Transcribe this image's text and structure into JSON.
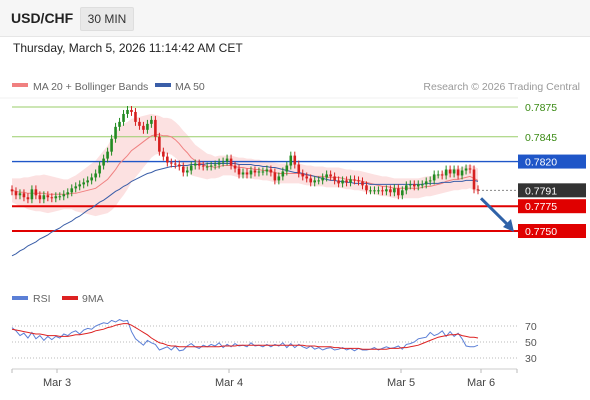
{
  "header": {
    "symbol": "USD/CHF",
    "timeframe": "30 MIN",
    "datetime": "Thursday, March 5, 2026 11:14:42 AM CET"
  },
  "legend": {
    "ma20": "MA 20 + Bollinger Bands",
    "ma50": "MA 50",
    "credit": "Research © 2026 Trading Central",
    "rsi": "RSI",
    "rsi_ma": "9MA"
  },
  "colors": {
    "up_candle": "#228b22",
    "down_candle": "#d62020",
    "ma20": "#f08080",
    "bollinger_fill": "#fcdcdc",
    "ma50": "#3a5ea8",
    "resistance_green": "#9acd6a",
    "pivot_blue": "#1f56c8",
    "support_red": "#e00000",
    "current_price_bg": "#333333",
    "rsi_line": "#5b7fd6",
    "rsi_ma_line": "#dd2222",
    "arrow": "#2f62a8"
  },
  "chart_data": {
    "type": "candlestick",
    "x_ticks": [
      "Mar 3",
      "Mar 4",
      "Mar 5",
      "Mar 6"
    ],
    "ylim": [
      0.771,
      0.789
    ],
    "levels": [
      {
        "value": 0.7875,
        "label": "0.7875",
        "kind": "resistance"
      },
      {
        "value": 0.7845,
        "label": "0.7845",
        "kind": "resistance"
      },
      {
        "value": 0.782,
        "label": "0.7820",
        "kind": "pivot"
      },
      {
        "value": 0.7791,
        "label": "0.7791",
        "kind": "current"
      },
      {
        "value": 0.7775,
        "label": "0.7775",
        "kind": "support"
      },
      {
        "value": 0.775,
        "label": "0.7750",
        "kind": "support"
      }
    ],
    "price_close": [
      0.779,
      0.7786,
      0.7788,
      0.7784,
      0.7782,
      0.7792,
      0.7786,
      0.7782,
      0.7786,
      0.7784,
      0.7783,
      0.7785,
      0.7785,
      0.7787,
      0.7789,
      0.7793,
      0.7795,
      0.7797,
      0.7799,
      0.7801,
      0.7804,
      0.7808,
      0.7816,
      0.7823,
      0.783,
      0.7843,
      0.7855,
      0.786,
      0.7868,
      0.7872,
      0.787,
      0.786,
      0.7856,
      0.7852,
      0.7858,
      0.7862,
      0.7845,
      0.783,
      0.7825,
      0.7819,
      0.7818,
      0.7817,
      0.7815,
      0.7809,
      0.7811,
      0.7816,
      0.7818,
      0.7816,
      0.7815,
      0.7815,
      0.7816,
      0.7817,
      0.7819,
      0.782,
      0.7823,
      0.7816,
      0.7813,
      0.7807,
      0.7809,
      0.7807,
      0.7811,
      0.7809,
      0.781,
      0.781,
      0.7812,
      0.7809,
      0.7801,
      0.7805,
      0.781,
      0.7816,
      0.7826,
      0.7817,
      0.7808,
      0.7805,
      0.7803,
      0.7799,
      0.7801,
      0.7801,
      0.7804,
      0.7807,
      0.7805,
      0.7801,
      0.7798,
      0.7801,
      0.7799,
      0.7802,
      0.7801,
      0.78,
      0.7796,
      0.7791,
      0.7791,
      0.7791,
      0.7791,
      0.779,
      0.7792,
      0.7789,
      0.7793,
      0.7786,
      0.7791,
      0.7796,
      0.7797,
      0.7795,
      0.7797,
      0.7797,
      0.78,
      0.7801,
      0.7807,
      0.7807,
      0.7806,
      0.7812,
      0.7808,
      0.7812,
      0.7806,
      0.7811,
      0.7813,
      0.7812,
      0.7792,
      0.7791
    ],
    "ma20": [
      0.7791,
      0.779,
      0.7789,
      0.7789,
      0.7788,
      0.7788,
      0.7788,
      0.7788,
      0.7788,
      0.7787,
      0.7787,
      0.7787,
      0.7787,
      0.7787,
      0.7787,
      0.7788,
      0.7788,
      0.7789,
      0.779,
      0.7791,
      0.7792,
      0.7793,
      0.7796,
      0.7799,
      0.7802,
      0.7807,
      0.7812,
      0.7818,
      0.7822,
      0.7826,
      0.7831,
      0.7834,
      0.7837,
      0.784,
      0.7843,
      0.7846,
      0.7847,
      0.7847,
      0.7846,
      0.7846,
      0.7845,
      0.7842,
      0.7838,
      0.7833,
      0.7829,
      0.7824,
      0.7821,
      0.7819,
      0.7817,
      0.7815,
      0.7815,
      0.7814,
      0.7815,
      0.7816,
      0.7816,
      0.7816,
      0.7815,
      0.7814,
      0.7814,
      0.7813,
      0.7813,
      0.7812,
      0.7812,
      0.7811,
      0.7811,
      0.781,
      0.7809,
      0.7808,
      0.7808,
      0.7808,
      0.7808,
      0.7808,
      0.7808,
      0.7807,
      0.7806,
      0.7806,
      0.7805,
      0.7805,
      0.7805,
      0.7804,
      0.7804,
      0.7804,
      0.7804,
      0.7803,
      0.7802,
      0.7802,
      0.7801,
      0.7801,
      0.78,
      0.7799,
      0.7798,
      0.7797,
      0.7796,
      0.7795,
      0.7795,
      0.7794,
      0.7793,
      0.7793,
      0.7793,
      0.7793,
      0.7793,
      0.7793,
      0.7793,
      0.7794,
      0.7795,
      0.7795,
      0.7796,
      0.7797,
      0.7798,
      0.78,
      0.7801,
      0.7802,
      0.7802,
      0.7803,
      0.7804,
      0.7805,
      0.7803,
      0.7801
    ],
    "ma50": [
      0.7725,
      0.7727,
      0.773,
      0.7732,
      0.7735,
      0.7737,
      0.7739,
      0.7742,
      0.7744,
      0.7746,
      0.7749,
      0.7751,
      0.7753,
      0.7756,
      0.7758,
      0.776,
      0.7763,
      0.7765,
      0.7768,
      0.7771,
      0.7773,
      0.7776,
      0.7779,
      0.7781,
      0.7784,
      0.7787,
      0.779,
      0.7792,
      0.7795,
      0.7797,
      0.78,
      0.7802,
      0.7804,
      0.7806,
      0.7808,
      0.7809,
      0.7811,
      0.7812,
      0.7813,
      0.7814,
      0.7815,
      0.7815,
      0.7816,
      0.7816,
      0.7816,
      0.7817,
      0.7817,
      0.7817,
      0.7817,
      0.7818,
      0.7818,
      0.7818,
      0.7818,
      0.7818,
      0.7818,
      0.7818,
      0.7818,
      0.7817,
      0.7817,
      0.7817,
      0.7817,
      0.7816,
      0.7816,
      0.7815,
      0.7815,
      0.7814,
      0.7814,
      0.7813,
      0.7812,
      0.7811,
      0.781,
      0.7809,
      0.7809,
      0.7808,
      0.7807,
      0.7806,
      0.7805,
      0.7804,
      0.7803,
      0.7802,
      0.7801,
      0.7801,
      0.78,
      0.78,
      0.7799,
      0.7799,
      0.7798,
      0.7798,
      0.7798,
      0.7798,
      0.7797,
      0.7797,
      0.7797,
      0.7797,
      0.7797,
      0.7797,
      0.7797,
      0.7797,
      0.7797,
      0.7797,
      0.7797,
      0.7797,
      0.7797,
      0.7797,
      0.7798,
      0.7798,
      0.7798,
      0.7798,
      0.7799,
      0.7799,
      0.7799,
      0.78,
      0.78,
      0.78,
      0.7801,
      0.7801,
      0.7801,
      0.78
    ],
    "bollinger_band_width": [
      0.0012,
      0.0013,
      0.0014,
      0.0015,
      0.0016,
      0.0017,
      0.0018,
      0.0018,
      0.0019,
      0.0019,
      0.0018,
      0.0017,
      0.0016,
      0.0015,
      0.0015,
      0.0016,
      0.0018,
      0.002,
      0.0022,
      0.0024,
      0.0026,
      0.0028,
      0.003,
      0.0032,
      0.0034,
      0.0036,
      0.0037,
      0.0037,
      0.0036,
      0.0034,
      0.0032,
      0.003,
      0.0028,
      0.0026,
      0.0024,
      0.0022,
      0.002,
      0.0019,
      0.0018,
      0.0018,
      0.0018,
      0.0018,
      0.0018,
      0.0018,
      0.0018,
      0.0018,
      0.0016,
      0.0015,
      0.0014,
      0.0013,
      0.0012,
      0.0011,
      0.0011,
      0.001,
      0.001,
      0.001,
      0.001,
      0.001,
      0.001,
      0.001,
      0.001,
      0.001,
      0.001,
      0.001,
      0.001,
      0.001,
      0.001,
      0.001,
      0.001,
      0.001,
      0.001,
      0.001,
      0.001,
      0.001,
      0.001,
      0.001,
      0.001,
      0.001,
      0.001,
      0.001,
      0.001,
      0.001,
      0.001,
      0.001,
      0.001,
      0.001,
      0.001,
      0.001,
      0.001,
      0.001,
      0.001,
      0.001,
      0.001,
      0.001,
      0.001,
      0.001,
      0.001,
      0.001,
      0.001,
      0.001,
      0.001,
      0.001,
      0.001,
      0.001,
      0.001,
      0.001,
      0.001,
      0.001,
      0.001,
      0.0011,
      0.0011,
      0.0011,
      0.0011,
      0.0011,
      0.0012,
      0.0012,
      0.0012,
      0.0012
    ],
    "rsi": {
      "ticks": [
        70,
        50,
        30
      ],
      "ylim": [
        20,
        85
      ],
      "values": [
        68,
        64,
        58,
        61,
        55,
        62,
        54,
        58,
        52,
        57,
        53,
        57,
        55,
        60,
        58,
        62,
        64,
        60,
        65,
        67,
        66,
        70,
        72,
        74,
        73,
        77,
        75,
        78,
        76,
        77,
        63,
        54,
        50,
        46,
        52,
        49,
        47,
        40,
        42,
        44,
        40,
        45,
        39,
        40,
        45,
        48,
        44,
        42,
        46,
        44,
        47,
        45,
        49,
        43,
        47,
        44,
        48,
        45,
        46,
        44,
        49,
        45,
        46,
        44,
        47,
        44,
        47,
        45,
        49,
        43,
        48,
        43,
        47,
        44,
        42,
        45,
        41,
        43,
        40,
        42,
        43,
        40,
        41,
        43,
        40,
        42,
        39,
        42,
        40,
        40,
        41,
        43,
        40,
        42,
        44,
        42,
        43,
        45,
        41,
        47,
        48,
        50,
        54,
        55,
        56,
        62,
        58,
        60,
        64,
        57,
        63,
        57,
        61,
        54,
        45,
        44,
        44,
        46
      ],
      "ma9": [
        66,
        65,
        64,
        63,
        62,
        61,
        60,
        60,
        59,
        58,
        58,
        58,
        57,
        57,
        57,
        58,
        59,
        59,
        60,
        61,
        62,
        64,
        65,
        66,
        68,
        69,
        71,
        72,
        73,
        73,
        71,
        68,
        65,
        62,
        59,
        55,
        52,
        49,
        48,
        46,
        45,
        45,
        44,
        44,
        44,
        44,
        44,
        44,
        44,
        44,
        44,
        44,
        44,
        45,
        45,
        45,
        45,
        46,
        46,
        46,
        46,
        46,
        46,
        46,
        46,
        46,
        46,
        46,
        46,
        46,
        46,
        46,
        46,
        46,
        45,
        45,
        45,
        44,
        44,
        44,
        44,
        43,
        43,
        42,
        42,
        42,
        42,
        42,
        41,
        41,
        41,
        41,
        41,
        41,
        41,
        42,
        42,
        42,
        43,
        43,
        44,
        45,
        46,
        48,
        50,
        52,
        54,
        56,
        57,
        58,
        59,
        59,
        60,
        58,
        57,
        56,
        56,
        55
      ]
    }
  }
}
